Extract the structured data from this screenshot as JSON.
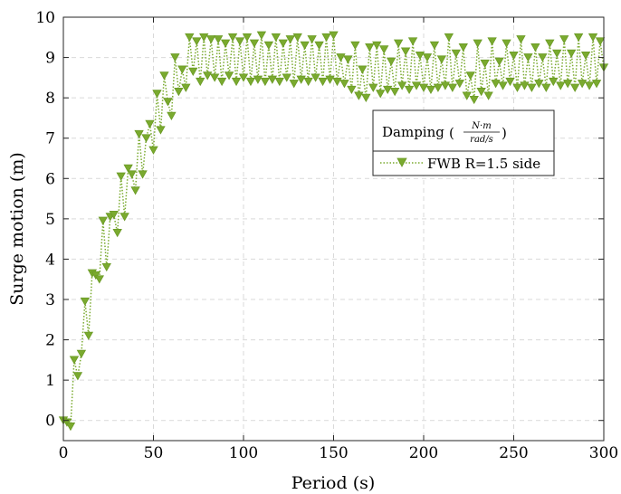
{
  "chart_data": {
    "type": "line",
    "title": "",
    "xlabel": "Period (s)",
    "ylabel": "Surge motion (m)",
    "xlim": [
      0,
      300
    ],
    "ylim": [
      -0.5,
      10
    ],
    "x_ticks": [
      "0",
      "50",
      "100",
      "150",
      "200",
      "250",
      "300"
    ],
    "y_ticks": [
      "0",
      "1",
      "2",
      "3",
      "4",
      "5",
      "6",
      "7",
      "8",
      "9",
      "10"
    ],
    "grid": true,
    "legend": {
      "position": "center-right",
      "title_text": "Damping",
      "title_numerator": "N·m",
      "title_denominator": "rad/s",
      "entries": [
        "FWB R=1.5 side"
      ]
    },
    "series": [
      {
        "name": "FWB R=1.5 side",
        "color": "#7aaa2f",
        "line_style": "dotted",
        "marker": "triangle-down",
        "x": [
          0,
          2,
          4,
          6,
          8,
          10,
          12,
          14,
          16,
          18,
          20,
          22,
          24,
          26,
          28,
          30,
          32,
          34,
          36,
          38,
          40,
          42,
          44,
          46,
          48,
          50,
          52,
          54,
          56,
          58,
          60,
          62,
          64,
          66,
          68,
          70,
          72,
          74,
          76,
          78,
          80,
          82,
          84,
          86,
          88,
          90,
          92,
          94,
          96,
          98,
          100,
          102,
          104,
          106,
          108,
          110,
          112,
          114,
          116,
          118,
          120,
          122,
          124,
          126,
          128,
          130,
          132,
          134,
          136,
          138,
          140,
          142,
          144,
          146,
          148,
          150,
          152,
          154,
          156,
          158,
          160,
          162,
          164,
          166,
          168,
          170,
          172,
          174,
          176,
          178,
          180,
          182,
          184,
          186,
          188,
          190,
          192,
          194,
          196,
          198,
          200,
          202,
          204,
          206,
          208,
          210,
          212,
          214,
          216,
          218,
          220,
          222,
          224,
          226,
          228,
          230,
          232,
          234,
          236,
          238,
          240,
          242,
          244,
          246,
          248,
          250,
          252,
          254,
          256,
          258,
          260,
          262,
          264,
          266,
          268,
          270,
          272,
          274,
          276,
          278,
          280,
          282,
          284,
          286,
          288,
          290,
          292,
          294,
          296,
          298,
          300
        ],
        "y": [
          0.0,
          -0.05,
          -0.15,
          1.5,
          1.1,
          1.65,
          2.95,
          2.1,
          3.65,
          3.6,
          3.5,
          4.95,
          3.8,
          5.05,
          5.1,
          4.65,
          6.05,
          5.05,
          6.25,
          6.1,
          5.7,
          7.1,
          6.1,
          7.0,
          7.35,
          6.7,
          8.1,
          7.2,
          8.55,
          7.9,
          7.55,
          9.0,
          8.15,
          8.7,
          8.25,
          9.5,
          8.65,
          9.4,
          8.4,
          9.5,
          8.55,
          9.45,
          8.5,
          9.45,
          8.4,
          9.35,
          8.55,
          9.5,
          8.4,
          9.4,
          8.5,
          9.5,
          8.4,
          9.35,
          8.45,
          9.55,
          8.4,
          9.3,
          8.45,
          9.5,
          8.4,
          9.35,
          8.5,
          9.45,
          8.35,
          9.5,
          8.45,
          9.3,
          8.4,
          9.45,
          8.5,
          9.3,
          8.4,
          9.5,
          8.45,
          9.55,
          8.4,
          9.0,
          8.35,
          8.95,
          8.2,
          9.3,
          8.05,
          8.7,
          8.0,
          9.25,
          8.25,
          9.3,
          8.1,
          9.2,
          8.2,
          8.9,
          8.15,
          9.35,
          8.3,
          9.15,
          8.2,
          9.4,
          8.3,
          9.05,
          8.25,
          9.0,
          8.2,
          9.3,
          8.25,
          8.95,
          8.3,
          9.5,
          8.25,
          9.1,
          8.35,
          9.25,
          8.05,
          8.55,
          7.95,
          9.35,
          8.15,
          8.85,
          8.05,
          9.4,
          8.35,
          8.9,
          8.3,
          9.35,
          8.4,
          9.05,
          8.25,
          9.45,
          8.3,
          9.0,
          8.25,
          9.25,
          8.35,
          9.0,
          8.25,
          9.35,
          8.4,
          9.1,
          8.3,
          9.45,
          8.35,
          9.1,
          8.25,
          9.5,
          8.35,
          9.05,
          8.3,
          9.5,
          8.35,
          9.4,
          8.75
        ]
      }
    ]
  }
}
